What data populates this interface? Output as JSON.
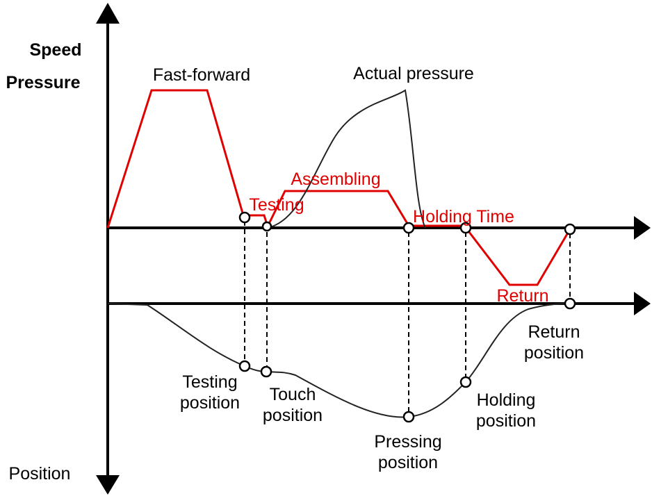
{
  "axis_labels": {
    "speed": "Speed",
    "pressure": "Pressure",
    "position": "Position"
  },
  "phase_labels": {
    "fast_forward": "Fast-forward",
    "actual_pressure": "Actual pressure",
    "testing": "Testing",
    "assembling": "Assembling",
    "holding_time": "Holding Time",
    "return": "Return"
  },
  "position_labels": [
    {
      "line1": "Testing",
      "line2": "position"
    },
    {
      "line1": "Touch",
      "line2": "position"
    },
    {
      "line1": "Pressing",
      "line2": "position"
    },
    {
      "line1": "Holding",
      "line2": "position"
    },
    {
      "line1": "Return",
      "line2": "position"
    }
  ]
}
